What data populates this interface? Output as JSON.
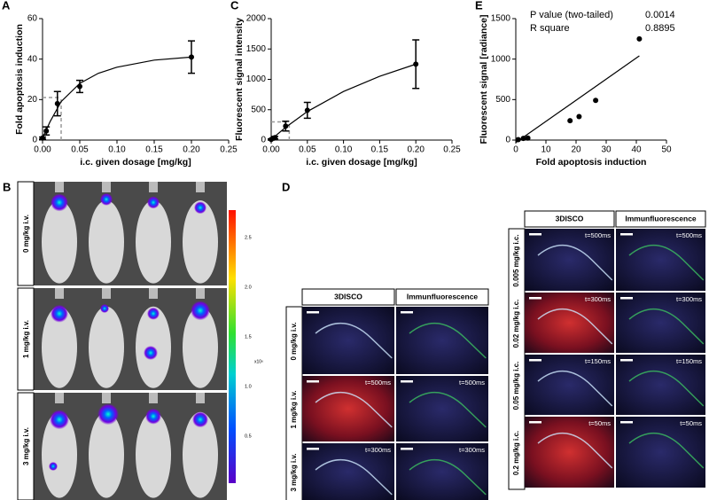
{
  "chart_data": [
    {
      "type": "scatter",
      "label": "A",
      "xlabel": "i.c. given dosage [mg/kg]",
      "ylabel": "Fold apoptosis induction",
      "xlim": [
        0,
        0.25
      ],
      "ylim": [
        0,
        60
      ],
      "xticks": [
        {
          "value": 0,
          "label": "0.00"
        },
        {
          "value": 0.05,
          "label": "0.05"
        },
        {
          "value": 0.1,
          "label": "0.10"
        },
        {
          "value": 0.15,
          "label": "0.15"
        },
        {
          "value": 0.2,
          "label": "0.20"
        },
        {
          "value": 0.25,
          "label": "0.25"
        }
      ],
      "yticks": [
        0,
        20,
        40,
        60
      ],
      "x": [
        0,
        0.005,
        0.02,
        0.05,
        0.2
      ],
      "values": [
        1,
        4.5,
        18,
        26.5,
        41
      ],
      "errors": [
        0.5,
        2,
        6,
        3,
        8
      ],
      "fit": {
        "x": [
          0,
          0.01,
          0.025,
          0.05,
          0.075,
          0.1,
          0.15,
          0.2
        ],
        "y": [
          1,
          9,
          19,
          28,
          33,
          36,
          39.5,
          41
        ]
      },
      "guide": {
        "x": 0.025,
        "y": 21
      },
      "color": "#000000"
    },
    {
      "type": "scatter",
      "label": "C",
      "xlabel": "i.c. given dosage [mg/kg]",
      "ylabel": "Fluorescent signal intensity",
      "xlim": [
        0,
        0.25
      ],
      "ylim": [
        0,
        2000
      ],
      "xticks": [
        {
          "value": 0,
          "label": "0.00"
        },
        {
          "value": 0.05,
          "label": "0.05"
        },
        {
          "value": 0.1,
          "label": "0.10"
        },
        {
          "value": 0.15,
          "label": "0.15"
        },
        {
          "value": 0.2,
          "label": "0.20"
        },
        {
          "value": 0.25,
          "label": "0.25"
        }
      ],
      "yticks": [
        0,
        500,
        1000,
        1500,
        2000
      ],
      "x": [
        0,
        0.005,
        0.02,
        0.05,
        0.2
      ],
      "values": [
        10,
        40,
        230,
        490,
        1250
      ],
      "errors": [
        10,
        20,
        80,
        130,
        400
      ],
      "fit": {
        "x": [
          0,
          0.02,
          0.05,
          0.1,
          0.15,
          0.2
        ],
        "y": [
          10,
          210,
          470,
          800,
          1050,
          1250
        ]
      },
      "guide": {
        "x": 0.025,
        "y": 300
      },
      "color": "#000000"
    },
    {
      "type": "scatter",
      "label": "E",
      "xlabel": "Fold apoptosis induction",
      "ylabel": "Fluorescent signal [radiance]",
      "xlim": [
        0,
        50
      ],
      "ylim": [
        0,
        1500
      ],
      "xticks": [
        0,
        10,
        20,
        30,
        40,
        50
      ],
      "yticks": [
        0,
        500,
        1000,
        1500
      ],
      "x": [
        0.8,
        2.5,
        4,
        18,
        21,
        26.5,
        41
      ],
      "values": [
        5,
        20,
        25,
        240,
        290,
        490,
        1250
      ],
      "fit": {
        "x": [
          0,
          41
        ],
        "y": [
          -30,
          1040
        ]
      },
      "color": "#000000",
      "annotations": [
        {
          "text": "P value (two-tailed)",
          "value": "0.0014"
        },
        {
          "text": "R square",
          "value": "0.8895"
        }
      ]
    }
  ],
  "panel_b": {
    "label": "B",
    "rows": [
      "0 mg/kg i.v.",
      "1 mg/kg i.v.",
      "3 mg/kg i.v."
    ],
    "colorbar_ticks": [
      "2.5",
      "2.0",
      "1.5",
      "1.0",
      "0.5"
    ],
    "colorbar_unit": "x10⁶"
  },
  "panel_d": {
    "label": "D",
    "left": {
      "columns": [
        "3DISCO",
        "Immunfluorescence"
      ],
      "rows": [
        {
          "label": "0 mg/kg i.v."
        },
        {
          "label": "1 mg/kg i.v.",
          "time": "t=500ms"
        },
        {
          "label": "3 mg/kg i.v.",
          "time": "t=300ms"
        }
      ]
    },
    "right": {
      "columns": [
        "3DISCO",
        "Immunfluorescence"
      ],
      "rows": [
        {
          "label": "0.005 mg/kg i.c.",
          "time": "t=500ms"
        },
        {
          "label": "0.02 mg/kg i.c.",
          "time": "t=300ms"
        },
        {
          "label": "0.05 mg/kg i.c.",
          "time": "t=150ms"
        },
        {
          "label": "0.2 mg/kg i.c.",
          "time": "t=50ms"
        }
      ]
    }
  }
}
